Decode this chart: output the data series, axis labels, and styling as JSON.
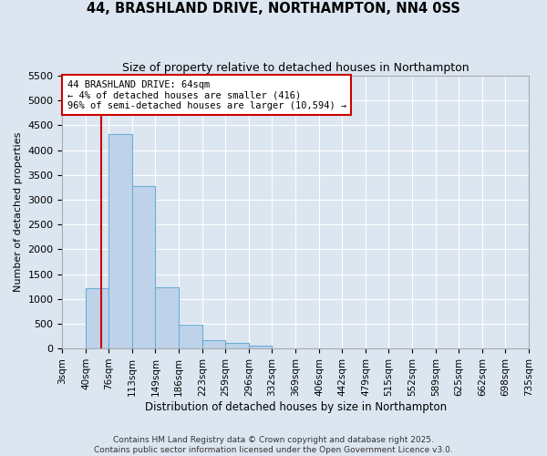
{
  "title": "44, BRASHLAND DRIVE, NORTHAMPTON, NN4 0SS",
  "subtitle": "Size of property relative to detached houses in Northampton",
  "xlabel": "Distribution of detached houses by size in Northampton",
  "ylabel": "Number of detached properties",
  "footer_line1": "Contains HM Land Registry data © Crown copyright and database right 2025.",
  "footer_line2": "Contains public sector information licensed under the Open Government Licence v3.0.",
  "categories": [
    "3sqm",
    "40sqm",
    "76sqm",
    "113sqm",
    "149sqm",
    "186sqm",
    "223sqm",
    "259sqm",
    "296sqm",
    "332sqm",
    "369sqm",
    "406sqm",
    "442sqm",
    "479sqm",
    "515sqm",
    "552sqm",
    "589sqm",
    "625sqm",
    "662sqm",
    "698sqm",
    "735sqm"
  ],
  "bar_values": [
    0,
    1220,
    4320,
    3280,
    1240,
    480,
    170,
    110,
    60,
    0,
    0,
    0,
    0,
    0,
    0,
    0,
    0,
    0,
    0,
    0,
    0
  ],
  "bar_color": "#bed3e9",
  "bar_edge_color": "#6baed6",
  "bg_color": "#dce6f1",
  "grid_color": "#ffffff",
  "vline_x_bin": 1,
  "vline_color": "#cc0000",
  "ylim_max": 5500,
  "yticks": [
    0,
    500,
    1000,
    1500,
    2000,
    2500,
    3000,
    3500,
    4000,
    4500,
    5000,
    5500
  ],
  "annotation_title": "44 BRASHLAND DRIVE: 64sqm",
  "annotation_line1": "← 4% of detached houses are smaller (416)",
  "annotation_line2": "96% of semi-detached houses are larger (10,594) →",
  "annotation_box_color": "#cc0000",
  "bin_edges": [
    3,
    40,
    76,
    113,
    149,
    186,
    223,
    259,
    296,
    332,
    369,
    406,
    442,
    479,
    515,
    552,
    589,
    625,
    662,
    698,
    735
  ]
}
